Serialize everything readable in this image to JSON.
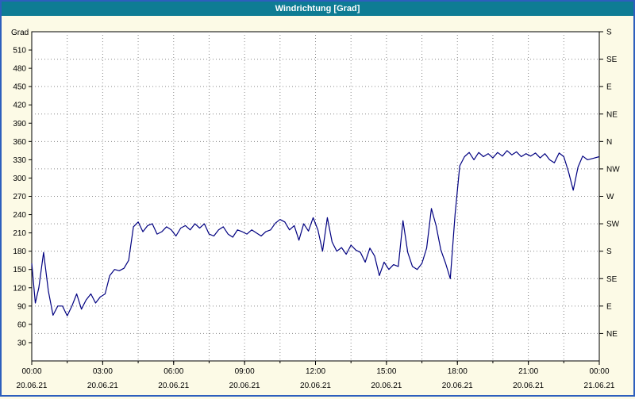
{
  "title": "Windrichtung [Grad]",
  "colors": {
    "window_border": "#2d5fbd",
    "titlebar_bg": "#0e7c94",
    "titlebar_text": "#ffffff",
    "background": "#fcfae6",
    "plot_bg": "#ffffff",
    "plot_border": "#000000",
    "grid": "#8a8a8a",
    "line": "#000080",
    "tick": "#000000"
  },
  "chart_data": {
    "type": "line",
    "title": "Windrichtung [Grad]",
    "ylabel_left": "Grad",
    "y_min": 0,
    "y_max": 540,
    "x_min": 0,
    "x_max": 24,
    "grid": "dashed",
    "left_ticks": [
      30,
      60,
      90,
      120,
      150,
      180,
      210,
      240,
      270,
      300,
      330,
      360,
      390,
      420,
      450,
      480,
      510
    ],
    "right_axis": [
      {
        "value": 540,
        "label": "S"
      },
      {
        "value": 495,
        "label": "SE"
      },
      {
        "value": 450,
        "label": "E"
      },
      {
        "value": 405,
        "label": "NE"
      },
      {
        "value": 360,
        "label": "N"
      },
      {
        "value": 315,
        "label": "NW"
      },
      {
        "value": 270,
        "label": "W"
      },
      {
        "value": 225,
        "label": "SW"
      },
      {
        "value": 180,
        "label": "S"
      },
      {
        "value": 135,
        "label": "SE"
      },
      {
        "value": 90,
        "label": "E"
      },
      {
        "value": 45,
        "label": "NE"
      }
    ],
    "x_axis_labels": [
      {
        "hour": 0,
        "time": "00:00",
        "date": "20.06.21"
      },
      {
        "hour": 3,
        "time": "03:00",
        "date": "20.06.21"
      },
      {
        "hour": 6,
        "time": "06:00",
        "date": "20.06.21"
      },
      {
        "hour": 9,
        "time": "09:00",
        "date": "20.06.21"
      },
      {
        "hour": 12,
        "time": "12:00",
        "date": "20.06.21"
      },
      {
        "hour": 15,
        "time": "15:00",
        "date": "20.06.21"
      },
      {
        "hour": 18,
        "time": "18:00",
        "date": "20.06.21"
      },
      {
        "hour": 21,
        "time": "21:00",
        "date": "20.06.21"
      },
      {
        "hour": 24,
        "time": "00:00",
        "date": "21.06.21"
      }
    ],
    "series": [
      {
        "name": "Windrichtung",
        "points": [
          [
            0,
            160
          ],
          [
            0.15,
            95
          ],
          [
            0.3,
            120
          ],
          [
            0.5,
            178
          ],
          [
            0.7,
            115
          ],
          [
            0.9,
            75
          ],
          [
            1.1,
            90
          ],
          [
            1.3,
            90
          ],
          [
            1.5,
            74
          ],
          [
            1.7,
            90
          ],
          [
            1.9,
            110
          ],
          [
            2.1,
            85
          ],
          [
            2.3,
            100
          ],
          [
            2.5,
            110
          ],
          [
            2.7,
            95
          ],
          [
            2.9,
            105
          ],
          [
            3.1,
            110
          ],
          [
            3.3,
            140
          ],
          [
            3.5,
            150
          ],
          [
            3.7,
            148
          ],
          [
            3.9,
            152
          ],
          [
            4.1,
            165
          ],
          [
            4.3,
            220
          ],
          [
            4.5,
            228
          ],
          [
            4.7,
            212
          ],
          [
            4.9,
            222
          ],
          [
            5.1,
            225
          ],
          [
            5.3,
            208
          ],
          [
            5.5,
            212
          ],
          [
            5.7,
            220
          ],
          [
            5.9,
            215
          ],
          [
            6.1,
            205
          ],
          [
            6.3,
            218
          ],
          [
            6.5,
            222
          ],
          [
            6.7,
            215
          ],
          [
            6.9,
            225
          ],
          [
            7.1,
            218
          ],
          [
            7.3,
            225
          ],
          [
            7.5,
            208
          ],
          [
            7.7,
            205
          ],
          [
            7.9,
            215
          ],
          [
            8.1,
            220
          ],
          [
            8.3,
            208
          ],
          [
            8.5,
            203
          ],
          [
            8.7,
            215
          ],
          [
            8.9,
            212
          ],
          [
            9.1,
            208
          ],
          [
            9.3,
            215
          ],
          [
            9.5,
            210
          ],
          [
            9.7,
            205
          ],
          [
            9.9,
            212
          ],
          [
            10.1,
            215
          ],
          [
            10.3,
            226
          ],
          [
            10.5,
            232
          ],
          [
            10.7,
            228
          ],
          [
            10.9,
            215
          ],
          [
            11.1,
            222
          ],
          [
            11.3,
            198
          ],
          [
            11.5,
            225
          ],
          [
            11.7,
            213
          ],
          [
            11.9,
            235
          ],
          [
            12.1,
            215
          ],
          [
            12.3,
            180
          ],
          [
            12.5,
            235
          ],
          [
            12.7,
            195
          ],
          [
            12.9,
            180
          ],
          [
            13.1,
            186
          ],
          [
            13.3,
            175
          ],
          [
            13.5,
            190
          ],
          [
            13.7,
            182
          ],
          [
            13.9,
            178
          ],
          [
            14.1,
            162
          ],
          [
            14.3,
            185
          ],
          [
            14.5,
            172
          ],
          [
            14.7,
            140
          ],
          [
            14.9,
            162
          ],
          [
            15.1,
            150
          ],
          [
            15.3,
            158
          ],
          [
            15.5,
            155
          ],
          [
            15.7,
            230
          ],
          [
            15.9,
            178
          ],
          [
            16.1,
            155
          ],
          [
            16.3,
            150
          ],
          [
            16.5,
            160
          ],
          [
            16.7,
            185
          ],
          [
            16.9,
            250
          ],
          [
            17.1,
            222
          ],
          [
            17.3,
            182
          ],
          [
            17.5,
            160
          ],
          [
            17.7,
            135
          ],
          [
            17.9,
            240
          ],
          [
            18.1,
            320
          ],
          [
            18.3,
            335
          ],
          [
            18.5,
            342
          ],
          [
            18.7,
            330
          ],
          [
            18.9,
            342
          ],
          [
            19.1,
            335
          ],
          [
            19.3,
            340
          ],
          [
            19.5,
            333
          ],
          [
            19.7,
            342
          ],
          [
            19.9,
            336
          ],
          [
            20.1,
            345
          ],
          [
            20.3,
            338
          ],
          [
            20.5,
            343
          ],
          [
            20.7,
            335
          ],
          [
            20.9,
            340
          ],
          [
            21.1,
            336
          ],
          [
            21.3,
            341
          ],
          [
            21.5,
            333
          ],
          [
            21.7,
            340
          ],
          [
            21.9,
            330
          ],
          [
            22.1,
            325
          ],
          [
            22.3,
            341
          ],
          [
            22.5,
            335
          ],
          [
            22.7,
            310
          ],
          [
            22.9,
            280
          ],
          [
            23.1,
            318
          ],
          [
            23.3,
            336
          ],
          [
            23.5,
            330
          ],
          [
            23.7,
            332
          ],
          [
            24,
            335
          ]
        ]
      }
    ]
  }
}
